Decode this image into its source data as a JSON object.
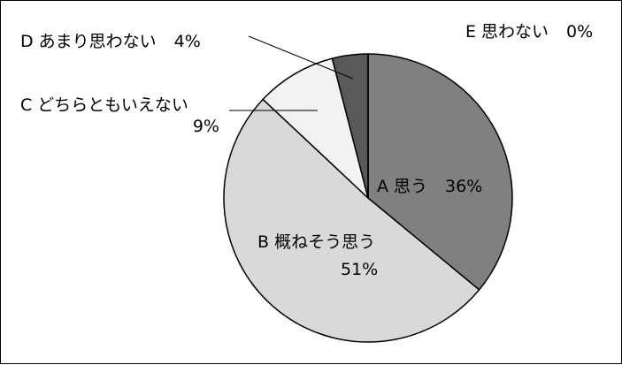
{
  "chart_data": {
    "type": "pie",
    "slices": [
      {
        "category": "A 思う",
        "value": 36,
        "value_label": "36%",
        "color": "#808080"
      },
      {
        "category": "B 概ねそう思う",
        "value": 51,
        "value_label": "51%",
        "color": "#d9d9d9"
      },
      {
        "category": "C どちらともいえない",
        "value": 9,
        "value_label": "9%",
        "color": "#f2f2f2"
      },
      {
        "category": "D あまり思わない",
        "value": 4,
        "value_label": "4%",
        "color": "#595959"
      },
      {
        "category": "E 思わない",
        "value": 0,
        "value_label": "0%",
        "color": "#404040"
      }
    ],
    "start_angle": "12 o'clock",
    "direction": "clockwise",
    "legend": "none",
    "border": true
  }
}
